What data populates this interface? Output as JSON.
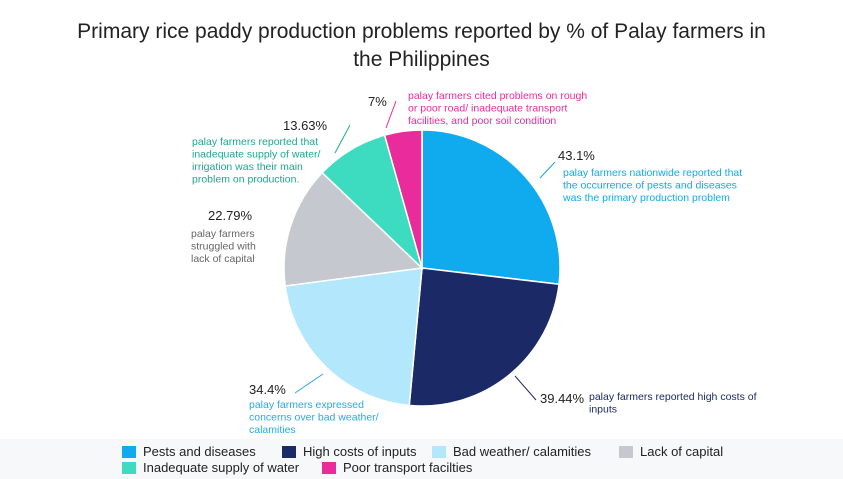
{
  "chart_data": {
    "type": "pie",
    "title": "Primary rice paddy production problems reported by % of Palay farmers in the Philippines",
    "slices": [
      {
        "name": "Pests and diseases",
        "value": 43.1,
        "label": "43.1%",
        "color": "#10aaee",
        "annotation": [
          "palay farmers nationwide reported that",
          "the occurrence of pests and diseases",
          "was the primary production problem"
        ]
      },
      {
        "name": "High costs of inputs",
        "value": 39.44,
        "label": "39.44%",
        "color": "#1b2a66",
        "annotation": [
          "palay farmers reported high costs of",
          "inputs"
        ]
      },
      {
        "name": "Bad weather/ calamities",
        "value": 34.4,
        "label": "34.4%",
        "color": "#b3e7fb",
        "annotation": [
          "palay farmers expressed",
          "concerns over bad weather/",
          "calamities"
        ]
      },
      {
        "name": "Lack of capital",
        "value": 22.79,
        "label": "22.79%",
        "color": "#c5c8ce",
        "annotation": [
          "palay farmers",
          "struggled with",
          "lack of capital"
        ]
      },
      {
        "name": "Inadequate supply of water",
        "value": 13.63,
        "label": "13.63%",
        "color": "#3ddcc0",
        "annotation": [
          "palay farmers reported that",
          "inadequate supply of water/",
          "irrigation was their main",
          "problem on production."
        ]
      },
      {
        "name": "Poor transport facilties",
        "value": 7,
        "label": "7%",
        "color": "#ea2b9b",
        "annotation": [
          "palay farmers cited problems on rough",
          "or poor road/ inadequate transport",
          "facilities, and poor soil condition"
        ]
      }
    ],
    "legend_placement": "bottom"
  }
}
